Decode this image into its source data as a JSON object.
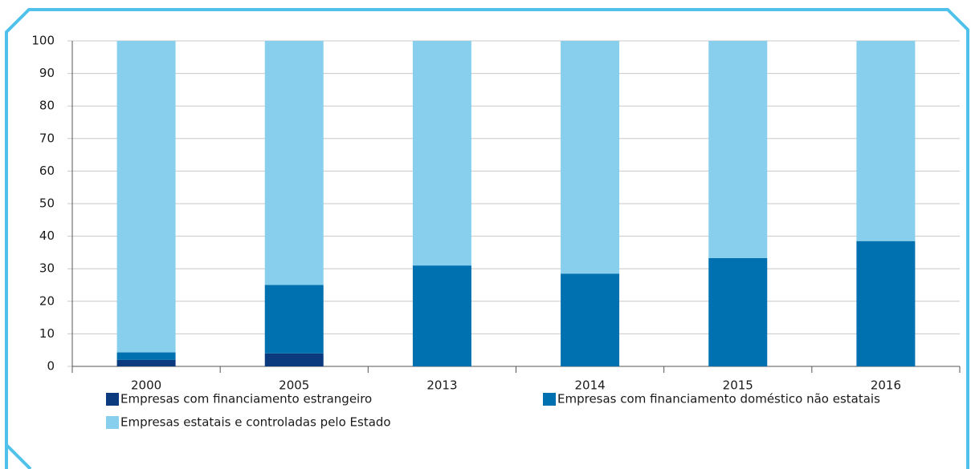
{
  "chart_data": {
    "type": "stacked_bar",
    "categories": [
      "2000",
      "2005",
      "2013",
      "2014",
      "2015",
      "2016"
    ],
    "series": [
      {
        "name": "Empresas com financiamento estrangeiro",
        "color": "#0b3a7e",
        "values": [
          2,
          4,
          0,
          0,
          0,
          0
        ]
      },
      {
        "name": "Empresas com financiamento doméstico não estatais",
        "color": "#0071b0",
        "values": [
          2.3,
          21,
          31,
          28.5,
          33.3,
          38.5
        ]
      },
      {
        "name": "Empresas estatais e controladas pelo Estado",
        "color": "#88cfee",
        "values": [
          95.7,
          75,
          69,
          71.5,
          66.7,
          61.5
        ]
      }
    ],
    "ylim": [
      0,
      100
    ],
    "yticks": [
      0,
      10,
      20,
      30,
      40,
      50,
      60,
      70,
      80,
      90,
      100
    ],
    "grid": true
  }
}
